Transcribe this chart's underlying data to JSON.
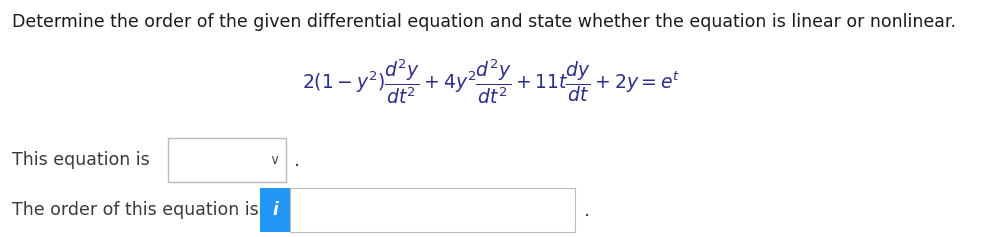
{
  "title": "Determine the order of the given differential equation and state whether the equation is linear or nonlinear.",
  "equation": "$2(1 - y^2)\\dfrac{d^2y}{dt^2} + 4y^2\\dfrac{d^2y}{dt^2} + 11t\\dfrac{dy}{dt} + 2y = e^t$",
  "label1": "This equation is",
  "label2": "The order of this equation is",
  "bg_color": "#ffffff",
  "eq_color": "#2c2c8a",
  "title_color": "#1a1a1a",
  "label_color": "#3a3a3a",
  "dropdown_border": "#bbbbbb",
  "blue_box_color": "#2196f3",
  "input_box_border": "#bbbbbb",
  "fig_width": 9.83,
  "fig_height": 2.37,
  "dpi": 100,
  "title_fontsize": 12.5,
  "eq_fontsize": 13.5,
  "label_fontsize": 12.5
}
